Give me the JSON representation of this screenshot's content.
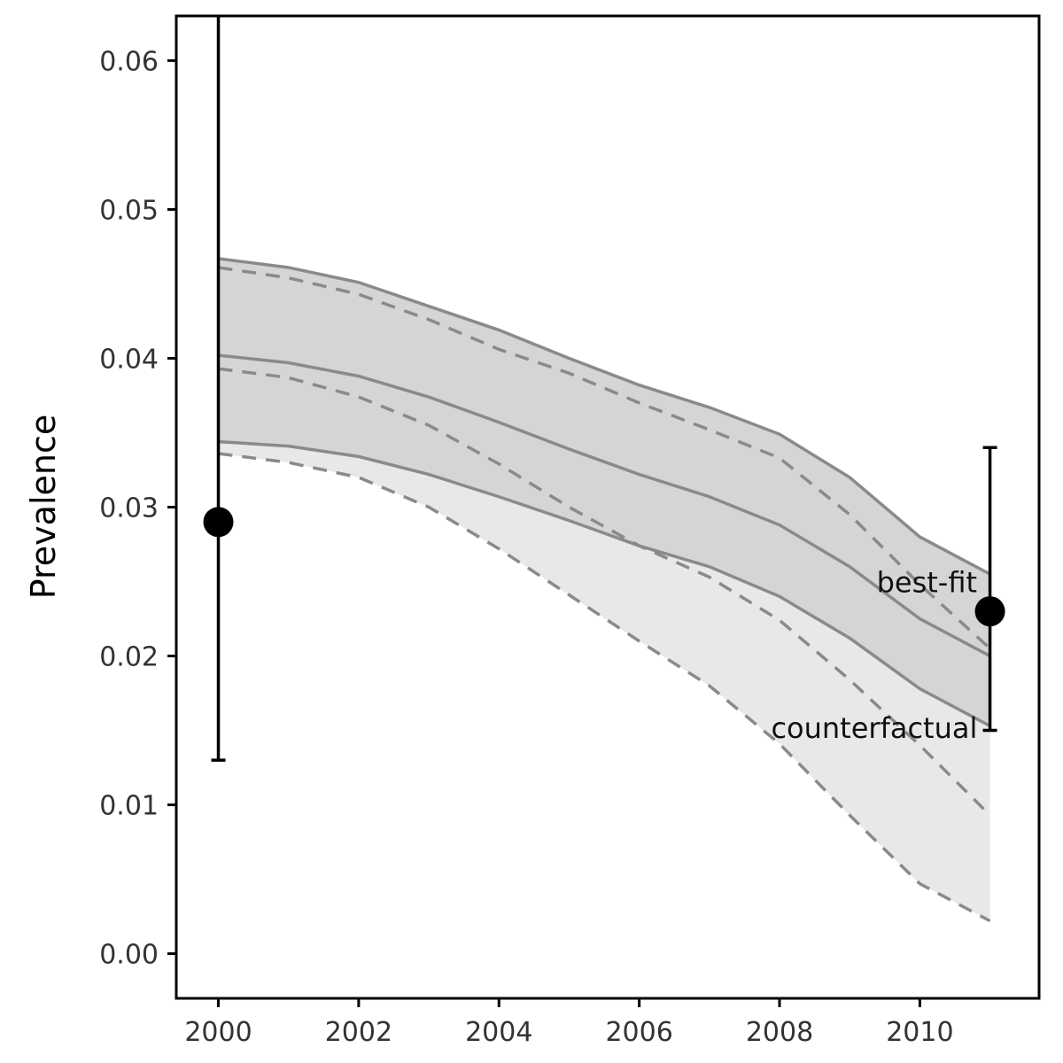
{
  "chart_data": {
    "type": "line",
    "title": "",
    "xlabel": "",
    "ylabel": "Prevalence",
    "xlim": [
      1999.4,
      2011.7
    ],
    "ylim": [
      -0.003,
      0.063
    ],
    "x_ticks": [
      2000,
      2002,
      2004,
      2006,
      2008,
      2010
    ],
    "x_tick_labels": [
      "2000",
      "2002",
      "2004",
      "2006",
      "2008",
      "2010"
    ],
    "y_ticks": [
      0.0,
      0.01,
      0.02,
      0.03,
      0.04,
      0.05,
      0.06
    ],
    "y_tick_labels": [
      "0.00",
      "0.01",
      "0.02",
      "0.03",
      "0.04",
      "0.05",
      "0.06"
    ],
    "grid": false,
    "x": [
      2000,
      2001,
      2002,
      2003,
      2004,
      2005,
      2006,
      2007,
      2008,
      2009,
      2010,
      2011
    ],
    "bands": [
      {
        "label": "counterfactual",
        "fill": "#e8e8e9",
        "line_style": "dashed",
        "upper": [
          0.0461,
          0.0454,
          0.0443,
          0.0426,
          0.0406,
          0.039,
          0.037,
          0.0352,
          0.0333,
          0.0295,
          0.0248,
          0.0205
        ],
        "middle": [
          0.0393,
          0.0387,
          0.0374,
          0.0355,
          0.0329,
          0.03,
          0.0274,
          0.0253,
          0.0224,
          0.0184,
          0.014,
          0.0093
        ],
        "lower": [
          0.0336,
          0.033,
          0.032,
          0.03,
          0.0272,
          0.0241,
          0.021,
          0.018,
          0.0141,
          0.0093,
          0.0047,
          0.0022
        ]
      },
      {
        "label": "best-fit",
        "fill": "#d5d5d7",
        "line_style": "solid",
        "upper": [
          0.0467,
          0.0461,
          0.0451,
          0.0435,
          0.0419,
          0.04,
          0.0382,
          0.0367,
          0.0349,
          0.032,
          0.028,
          0.0255
        ],
        "middle": [
          0.0402,
          0.0397,
          0.0388,
          0.0374,
          0.0357,
          0.0339,
          0.0322,
          0.0307,
          0.0288,
          0.026,
          0.0225,
          0.02
        ],
        "lower": [
          0.0344,
          0.0341,
          0.0334,
          0.0322,
          0.0307,
          0.0291,
          0.0274,
          0.026,
          0.024,
          0.0212,
          0.0178,
          0.0153
        ]
      }
    ],
    "observations": [
      {
        "x": 2000,
        "y": 0.029,
        "lower": 0.013,
        "upper": 0.065
      },
      {
        "x": 2011,
        "y": 0.023,
        "lower": 0.015,
        "upper": 0.034
      }
    ],
    "annotations": [
      {
        "text": "best-fit",
        "x": 2010.1,
        "y": 0.0243
      },
      {
        "text": "counterfactual",
        "x": 2009.35,
        "y": 0.0145
      }
    ],
    "colors": {
      "band_line": "#8a8a8a",
      "observation": "#000000",
      "axis": "#000000"
    }
  }
}
